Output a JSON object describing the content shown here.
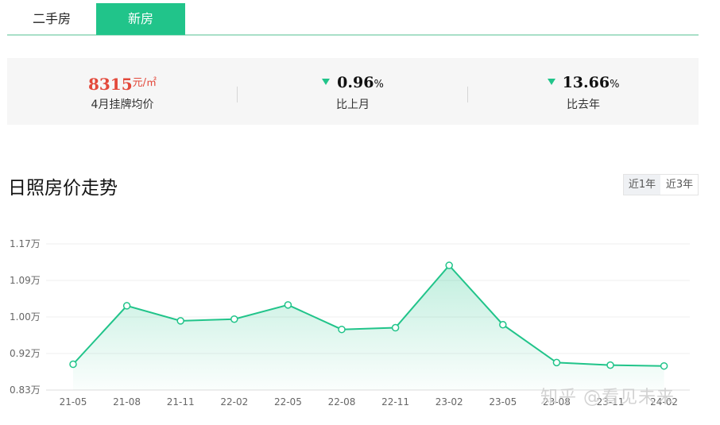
{
  "tabs": [
    {
      "label": "二手房",
      "active": false
    },
    {
      "label": "新房",
      "active": true
    }
  ],
  "stats": {
    "price": {
      "value": "8315",
      "unit": "元/㎡",
      "label": "4月挂牌均价"
    },
    "mom": {
      "direction": "down",
      "value": "0.96",
      "unit": "%",
      "label": "比上月"
    },
    "yoy": {
      "direction": "down",
      "value": "13.66",
      "unit": "%",
      "label": "比去年"
    }
  },
  "section_title": "日照房价走势",
  "range_toggle": {
    "options": [
      "近1年",
      "近3年"
    ],
    "selected": "近1年"
  },
  "watermark": "知乎 @看见未来",
  "colors": {
    "accent": "#21c48a",
    "price": "#e3493b",
    "down_arrow": "#21c48a"
  },
  "chart_data": {
    "type": "area",
    "categories": [
      "21-05",
      "21-08",
      "21-11",
      "22-02",
      "22-05",
      "22-08",
      "22-11",
      "23-02",
      "23-05",
      "23-08",
      "23-11",
      "24-02"
    ],
    "values": [
      0.89,
      1.026,
      0.991,
      0.995,
      1.028,
      0.971,
      0.975,
      1.12,
      0.982,
      0.894,
      0.888,
      0.886
    ],
    "value_unit": "万",
    "y_ticks": [
      "0.83万",
      "0.92万",
      "1.00万",
      "1.09万",
      "1.17万"
    ],
    "y_tick_values": [
      0.83,
      0.915,
      1.0,
      1.085,
      1.17
    ],
    "ylim": [
      0.83,
      1.17
    ],
    "grid": true,
    "title": "",
    "xlabel": "",
    "ylabel": ""
  }
}
